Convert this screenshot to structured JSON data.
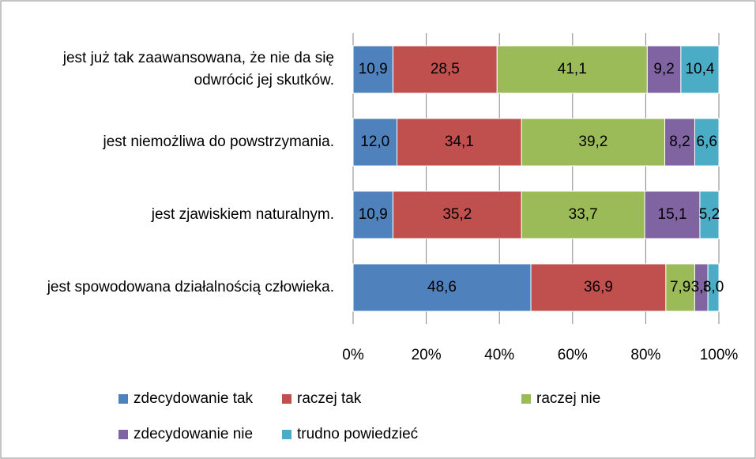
{
  "chart_data": {
    "type": "bar",
    "orientation": "horizontal",
    "stacking": "percent",
    "categories": [
      "jest już tak zaawansowana, że nie da się odwrócić jej skutków.",
      "jest niemożliwa do powstrzymania.",
      "jest zjawiskiem naturalnym.",
      "jest spowodowana działalnością człowieka."
    ],
    "series": [
      {
        "name": "zdecydowanie tak",
        "color": "#4f81bd",
        "values": [
          10.9,
          12.0,
          10.9,
          48.6
        ],
        "value_labels": [
          "10,9",
          "12,0",
          "10,9",
          "48,6"
        ]
      },
      {
        "name": "raczej tak",
        "color": "#c0504d",
        "values": [
          28.5,
          34.1,
          35.2,
          36.9
        ],
        "value_labels": [
          "28,5",
          "34,1",
          "35,2",
          "36,9"
        ]
      },
      {
        "name": "raczej nie",
        "color": "#9bbb59",
        "values": [
          41.1,
          39.2,
          33.7,
          7.9
        ],
        "value_labels": [
          "41,1",
          "39,2",
          "33,7",
          "7,9"
        ]
      },
      {
        "name": "zdecydowanie nie",
        "color": "#8064a2",
        "values": [
          9.2,
          8.2,
          15.1,
          3.6
        ],
        "value_labels": [
          "9,2",
          "8,2",
          "15,1",
          "3,6"
        ]
      },
      {
        "name": "trudno powiedzieć",
        "color": "#4bacc6",
        "values": [
          10.4,
          6.6,
          5.2,
          3.0
        ],
        "value_labels": [
          "10,4",
          "6,6",
          "5,2",
          "3,0"
        ]
      }
    ],
    "xlim": [
      0,
      100
    ],
    "xticks": [
      {
        "value": 0,
        "label": "0%"
      },
      {
        "value": 20,
        "label": "20%"
      },
      {
        "value": 40,
        "label": "40%"
      },
      {
        "value": 60,
        "label": "60%"
      },
      {
        "value": 80,
        "label": "80%"
      },
      {
        "value": 100,
        "label": "100%"
      }
    ],
    "grid": true,
    "legend": "bottom"
  }
}
